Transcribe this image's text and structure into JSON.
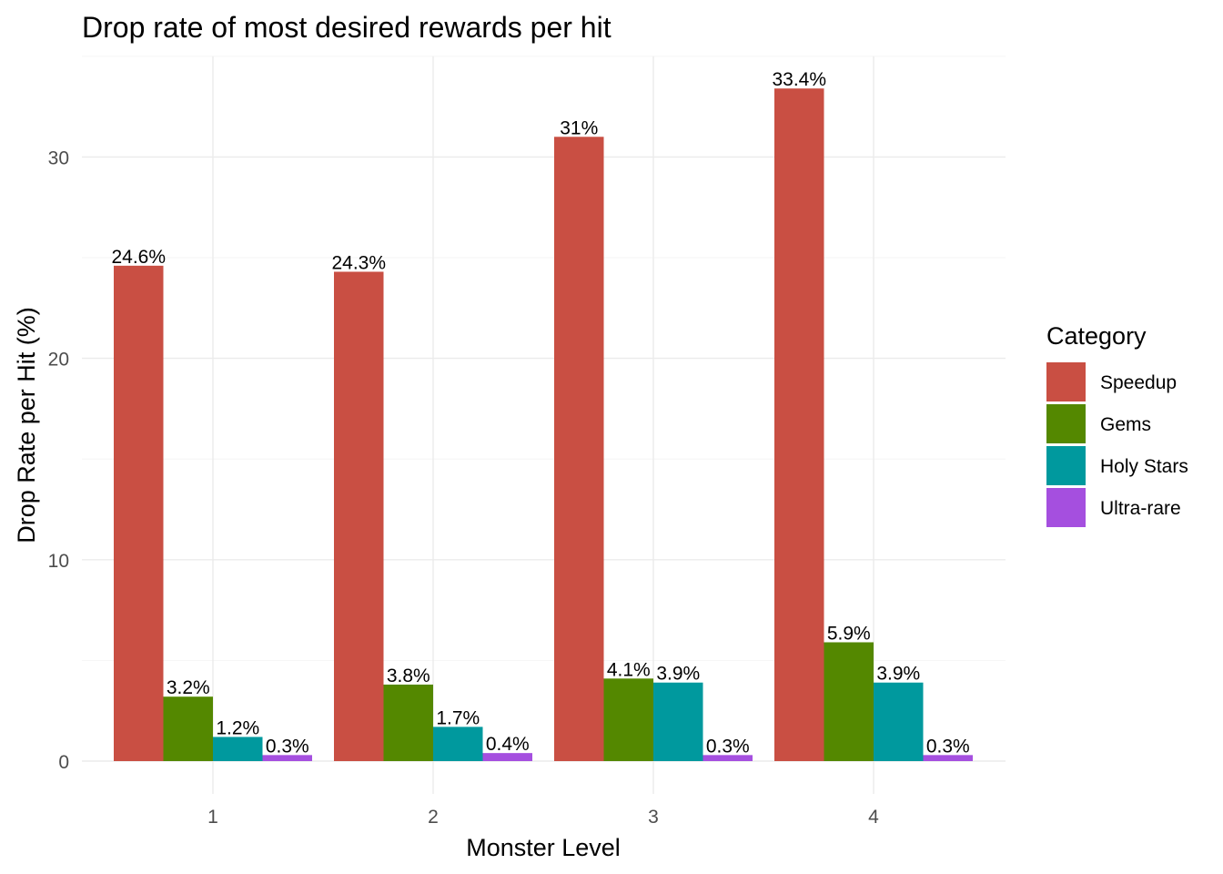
{
  "chart_data": {
    "type": "bar",
    "title": "Drop rate of most desired rewards per hit",
    "xlabel": "Monster Level",
    "ylabel": "Drop Rate per Hit (%)",
    "categories": [
      "1",
      "2",
      "3",
      "4"
    ],
    "ylim": [
      0,
      35
    ],
    "yticks": [
      0,
      10,
      20,
      30
    ],
    "grid": true,
    "legend": {
      "title": "Category",
      "position": "right"
    },
    "series": [
      {
        "name": "Speedup",
        "color": "#c94f43",
        "values": [
          24.6,
          24.3,
          31,
          33.4
        ],
        "labels": [
          "24.6%",
          "24.3%",
          "31%",
          "33.4%"
        ]
      },
      {
        "name": "Gems",
        "color": "#548800",
        "values": [
          3.2,
          3.8,
          4.1,
          5.9
        ],
        "labels": [
          "3.2%",
          "3.8%",
          "4.1%",
          "5.9%"
        ]
      },
      {
        "name": "Holy Stars",
        "color": "#00999e",
        "values": [
          1.2,
          1.7,
          3.9,
          3.9
        ],
        "labels": [
          "1.2%",
          "1.7%",
          "3.9%",
          "3.9%"
        ]
      },
      {
        "name": "Ultra-rare",
        "color": "#a54fdf",
        "values": [
          0.3,
          0.4,
          0.3,
          0.3
        ],
        "labels": [
          "0.3%",
          "0.4%",
          "0.3%",
          "0.3%"
        ]
      }
    ]
  }
}
